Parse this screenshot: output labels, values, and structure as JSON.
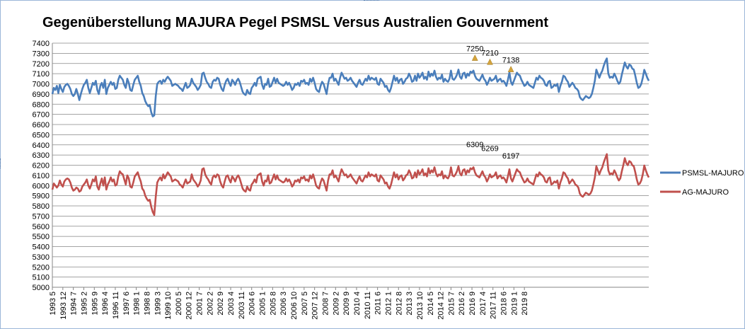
{
  "chart_data": {
    "type": "line",
    "title": "Gegenüberstellung MAJURA Pegel PSMSL Versus Australien Gouvernment",
    "xlabel": "",
    "ylabel": "",
    "ylim": [
      5000,
      7400
    ],
    "ytick_step": 100,
    "yticks": [
      "5000",
      "5100",
      "5200",
      "5300",
      "5400",
      "5500",
      "5600",
      "5700",
      "5800",
      "5900",
      "6000",
      "6100",
      "6200",
      "6300",
      "6400",
      "6500",
      "6600",
      "6700",
      "6800",
      "6900",
      "7000",
      "7100",
      "7200",
      "7300",
      "7400"
    ],
    "grid": "horizontal",
    "legend_position": "right",
    "x_tick_labels": [
      "1993 5",
      "1993 12",
      "1994 7",
      "1995 2",
      "1995 9",
      "1996 4",
      "1996 11",
      "1997 6",
      "1998 1",
      "1998 8",
      "1999 3",
      "1999 10",
      "2000 5",
      "2000 12",
      "2001 7",
      "2002 2",
      "2002 9",
      "2003 4",
      "2003 11",
      "2004 6",
      "2005 1",
      "2005 8",
      "2006 3",
      "2006 10",
      "2007 5",
      "2007 12",
      "2008 7",
      "2009 2",
      "2009 9",
      "2010 4",
      "2010 11",
      "2011 6",
      "2012 1",
      "2012 8",
      "2013 3",
      "2013 10",
      "2014 5",
      "2014 12",
      "2015 7",
      "2016 2",
      "2016 9",
      "2017 4",
      "2017 11",
      "2018 6",
      "2019 1",
      "2019 8"
    ],
    "x_start_month": "1993-05",
    "x_end_month": "2019-09",
    "series": [
      {
        "name": "PSMSL-MAJURO",
        "color": "#4a7ebb",
        "values": [
          6900,
          6960,
          6940,
          6980,
          6910,
          6990,
          6950,
          6920,
          6970,
          6990,
          7000,
          6980,
          6950,
          6900,
          6880,
          6900,
          6950,
          6900,
          6840,
          6900,
          6950,
          6990,
          7010,
          7040,
          6960,
          6910,
          6960,
          7010,
          6990,
          7030,
          6940,
          6900,
          6980,
          7010,
          6960,
          7040,
          6900,
          6960,
          6990,
          7020,
          6990,
          7010,
          6950,
          6960,
          7040,
          7080,
          7060,
          7040,
          6990,
          6960,
          7050,
          7010,
          6940,
          6930,
          6990,
          7040,
          7060,
          7080,
          7020,
          6980,
          6910,
          6880,
          6830,
          6800,
          6780,
          6790,
          6720,
          6680,
          6690,
          6880,
          7000,
          7020,
          7030,
          7000,
          7040,
          7020,
          7050,
          7070,
          7050,
          7030,
          6980,
          6990,
          7000,
          6990,
          6980,
          6960,
          6950,
          6930,
          6970,
          7010,
          6960,
          6970,
          6990,
          7050,
          7010,
          6990,
          6970,
          6940,
          6960,
          6990,
          7100,
          7110,
          7060,
          7020,
          7000,
          6970,
          6960,
          7020,
          7040,
          7030,
          7060,
          7050,
          6990,
          6950,
          6930,
          6990,
          7030,
          7050,
          7010,
          6980,
          7040,
          7020,
          6990,
          7030,
          7050,
          7020,
          6970,
          6920,
          6900,
          6890,
          6940,
          6910,
          6900,
          6960,
          6980,
          7010,
          6980,
          7050,
          7060,
          7070,
          6990,
          6950,
          7000,
          6990,
          7050,
          6970,
          6980,
          7020,
          7060,
          7010,
          7050,
          7010,
          7000,
          6990,
          6980,
          6990,
          7020,
          6990,
          7010,
          6980,
          6940,
          6960,
          7000,
          6990,
          7010,
          6980,
          7030,
          7020,
          7040,
          7000,
          7010,
          6990,
          7050,
          7020,
          7060,
          7010,
          6950,
          6930,
          6920,
          6980,
          7020,
          7000,
          6950,
          6900,
          7000,
          7060,
          7060,
          7100,
          7030,
          7050,
          7020,
          6990,
          7060,
          7110,
          7080,
          7050,
          7060,
          7030,
          7040,
          7060,
          7030,
          7010,
          6990,
          6970,
          7010,
          7040,
          7000,
          6990,
          7020,
          7050,
          7030,
          7080,
          7040,
          7060,
          7050,
          7040,
          7060,
          7000,
          6990,
          7050,
          7030,
          7010,
          6970,
          6980,
          6940,
          6920,
          6960,
          7020,
          7080,
          7030,
          7060,
          7010,
          7040,
          7050,
          7000,
          7020,
          7050,
          7060,
          7100,
          7070,
          7020,
          7030,
          7080,
          7030,
          7100,
          7060,
          7080,
          7110,
          7050,
          7070,
          7040,
          7120,
          7070,
          7100,
          7080,
          7130,
          7070,
          7040,
          7060,
          7050,
          7090,
          7020,
          7050,
          7030,
          7020,
          7050,
          7130,
          7050,
          7040,
          7060,
          7090,
          7140,
          7070,
          7050,
          7100,
          7110,
          7060,
          7100,
          7080,
          7120,
          7110,
          7130,
          7080,
          7050,
          7040,
          7030,
          7060,
          7090,
          7050,
          7030,
          6990,
          7020,
          7060,
          7030,
          7040,
          7050,
          7080,
          7020,
          7040,
          7050,
          7020,
          7030,
          7010,
          6980,
          7040,
          7110,
          7020,
          6990,
          7030,
          7070,
          7110,
          7090,
          7080,
          7040,
          7010,
          6980,
          6990,
          7020,
          6990,
          6980,
          6970,
          6960,
          7010,
          7060,
          7040,
          7080,
          7060,
          7050,
          7030,
          6990,
          6980,
          7020,
          7030,
          6960,
          6970,
          6990,
          6980,
          7000,
          6920,
          6980,
          7020,
          7080,
          7070,
          7040,
          7020,
          6970,
          6990,
          7010,
          6990,
          6960,
          6950,
          6930,
          6870,
          6850,
          6840,
          6860,
          6880,
          6870,
          6860,
          6870,
          6900,
          6960,
          7030,
          7140,
          7100,
          7060,
          7100,
          7130,
          7180,
          7220,
          7250,
          7100,
          7060,
          7070,
          7060,
          7100,
          7070,
          7030,
          7000,
          7020,
          7090,
          7150,
          7210,
          7170,
          7150,
          7190,
          7180,
          7150,
          7140,
          7080,
          7010,
          6960,
          6970,
          7000,
          7060,
          7138,
          7100,
          7060,
          7030
        ]
      },
      {
        "name": "AG-MAJURO",
        "color": "#c0504d",
        "values": [
          5960,
          6020,
          6000,
          5980,
          6000,
          6050,
          6010,
          5990,
          6040,
          6060,
          6070,
          6060,
          6030,
          5980,
          5950,
          5960,
          5980,
          5970,
          5940,
          5950,
          5990,
          6010,
          6030,
          6060,
          6000,
          5970,
          6010,
          6060,
          6040,
          6090,
          5990,
          5960,
          6020,
          6070,
          6000,
          6080,
          5960,
          6010,
          6040,
          6080,
          6040,
          6060,
          6000,
          6010,
          6090,
          6140,
          6120,
          6110,
          6060,
          6010,
          6100,
          6070,
          5990,
          5980,
          6030,
          6090,
          6110,
          6130,
          6080,
          6040,
          5970,
          5950,
          5900,
          5870,
          5850,
          5860,
          5790,
          5740,
          5710,
          5890,
          6030,
          6060,
          6080,
          6050,
          6110,
          6070,
          6100,
          6130,
          6110,
          6090,
          6040,
          6050,
          6060,
          6050,
          6040,
          6010,
          6000,
          5980,
          6020,
          6060,
          6020,
          6030,
          6040,
          6110,
          6060,
          6040,
          6020,
          5990,
          6010,
          6050,
          6160,
          6170,
          6110,
          6080,
          6060,
          6030,
          6010,
          6080,
          6100,
          6080,
          6110,
          6100,
          6040,
          6000,
          5980,
          6040,
          6090,
          6100,
          6060,
          6030,
          6090,
          6070,
          6040,
          6080,
          6100,
          6070,
          6020,
          5970,
          5950,
          5940,
          5990,
          5960,
          5950,
          6010,
          6030,
          6060,
          6030,
          6100,
          6110,
          6120,
          6040,
          6000,
          6050,
          6040,
          6100,
          6020,
          6030,
          6070,
          6110,
          6060,
          6100,
          6060,
          6050,
          6040,
          6030,
          6040,
          6070,
          6040,
          6060,
          6030,
          5990,
          6010,
          6050,
          6040,
          6060,
          6030,
          6080,
          6070,
          6090,
          6050,
          6060,
          6040,
          6100,
          6070,
          6110,
          6060,
          6000,
          5980,
          5970,
          6030,
          6070,
          6050,
          6000,
          5950,
          6050,
          6110,
          6110,
          6150,
          6080,
          6100,
          6070,
          6040,
          6110,
          6160,
          6130,
          6100,
          6110,
          6080,
          6090,
          6110,
          6080,
          6060,
          6040,
          6020,
          6060,
          6090,
          6050,
          6040,
          6070,
          6100,
          6080,
          6130,
          6090,
          6110,
          6100,
          6090,
          6110,
          6050,
          6040,
          6100,
          6080,
          6060,
          6020,
          6030,
          5990,
          5970,
          6010,
          6070,
          6130,
          6080,
          6110,
          6060,
          6090,
          6100,
          6050,
          6070,
          6100,
          6110,
          6150,
          6120,
          6070,
          6080,
          6130,
          6080,
          6150,
          6110,
          6130,
          6160,
          6100,
          6120,
          6090,
          6170,
          6120,
          6150,
          6130,
          6180,
          6120,
          6090,
          6110,
          6100,
          6140,
          6070,
          6100,
          6080,
          6070,
          6100,
          6180,
          6100,
          6090,
          6110,
          6140,
          6190,
          6120,
          6100,
          6150,
          6160,
          6110,
          6150,
          6130,
          6170,
          6160,
          6180,
          6130,
          6100,
          6090,
          6080,
          6110,
          6140,
          6100,
          6080,
          6040,
          6070,
          6110,
          6080,
          6090,
          6100,
          6130,
          6070,
          6090,
          6100,
          6070,
          6080,
          6060,
          6030,
          6090,
          6160,
          6070,
          6040,
          6080,
          6120,
          6160,
          6140,
          6130,
          6090,
          6060,
          6030,
          6040,
          6070,
          6040,
          6030,
          6020,
          6010,
          6060,
          6110,
          6090,
          6130,
          6110,
          6100,
          6080,
          6040,
          6030,
          6070,
          6080,
          6010,
          6020,
          6040,
          6030,
          6050,
          5970,
          6030,
          6070,
          6130,
          6120,
          6090,
          6070,
          6020,
          6040,
          6060,
          6040,
          6010,
          6000,
          5980,
          5920,
          5900,
          5890,
          5910,
          5930,
          5920,
          5910,
          5920,
          5950,
          6010,
          6080,
          6190,
          6150,
          6110,
          6150,
          6180,
          6230,
          6270,
          6309,
          6150,
          6110,
          6120,
          6110,
          6150,
          6120,
          6080,
          6050,
          6070,
          6140,
          6200,
          6269,
          6220,
          6200,
          6240,
          6230,
          6200,
          6190,
          6130,
          6060,
          6010,
          6020,
          6050,
          6110,
          6197,
          6150,
          6110,
          6080
        ]
      }
    ],
    "annotations": [
      {
        "series": "PSMSL-MAJURO",
        "label": "7250",
        "value": 7250,
        "month": "2016-11"
      },
      {
        "series": "PSMSL-MAJURO",
        "label": "7210",
        "value": 7210,
        "month": "2017-09"
      },
      {
        "series": "PSMSL-MAJURO",
        "label": "7138",
        "value": 7138,
        "month": "2018-11"
      },
      {
        "series": "AG-MAJURO",
        "label": "6309",
        "value": 6309,
        "month": "2016-11"
      },
      {
        "series": "AG-MAJURO",
        "label": "6269",
        "value": 6269,
        "month": "2017-09"
      },
      {
        "series": "AG-MAJURO",
        "label": "6197",
        "value": 6197,
        "month": "2018-11"
      }
    ],
    "marker_color": "#d4a33c"
  }
}
